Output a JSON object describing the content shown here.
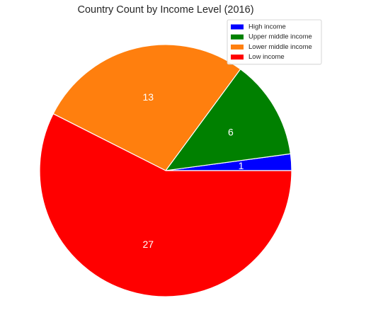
{
  "chart_data": {
    "type": "pie",
    "title": "Country Count by Income Level (2016)",
    "categories": [
      "High income",
      "Upper middle income",
      "Lower middle income",
      "Low income"
    ],
    "values": [
      1,
      6,
      13,
      27
    ],
    "value_labels": [
      "1",
      "6",
      "13",
      "27"
    ],
    "colors": [
      "#0000ff",
      "#008000",
      "#ff7f0e",
      "#ff0000"
    ],
    "start_angle_deg": 0,
    "direction": "counterclockwise",
    "slice_edge_color": "#ffffff",
    "legend": {
      "placement": "top-right",
      "entries": [
        "High income",
        "Upper middle income",
        "Lower middle income",
        "Low income"
      ]
    }
  }
}
